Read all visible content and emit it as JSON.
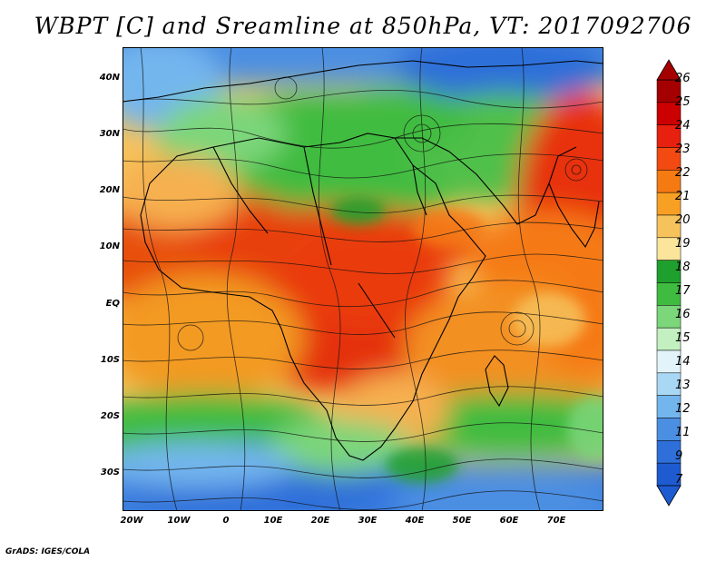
{
  "title": "WBPT [C] and Sreamline at 850hPa, VT: 2017092706",
  "credit": "GrADS: IGES/COLA",
  "lat_labels": [
    "40N",
    "30N",
    "20N",
    "10N",
    "EQ",
    "10S",
    "20S",
    "30S"
  ],
  "lon_labels": [
    "20W",
    "10W",
    "0",
    "10E",
    "20E",
    "30E",
    "40E",
    "50E",
    "60E",
    "70E"
  ],
  "colorbar": {
    "labels": [
      "26",
      "25",
      "24",
      "23",
      "22",
      "21",
      "20",
      "19",
      "18",
      "17",
      "16",
      "15",
      "14",
      "13",
      "12",
      "11",
      "9",
      "7"
    ],
    "colors": [
      "#a50000",
      "#cc0000",
      "#e8200f",
      "#f24a10",
      "#f57a12",
      "#f8a024",
      "#f6c25c",
      "#fbe59a",
      "#1fa02e",
      "#3fbc3f",
      "#7cd67a",
      "#c2f0c0",
      "#e2f4fa",
      "#a9d8f5",
      "#73b6ee",
      "#4b8fe2",
      "#2e6fd9",
      "#1e5ad0"
    ]
  },
  "map_colors": {
    "ocean_cold": "#3a7fe0",
    "warm_core": "#e85018",
    "land_green": "#4fc04a"
  }
}
